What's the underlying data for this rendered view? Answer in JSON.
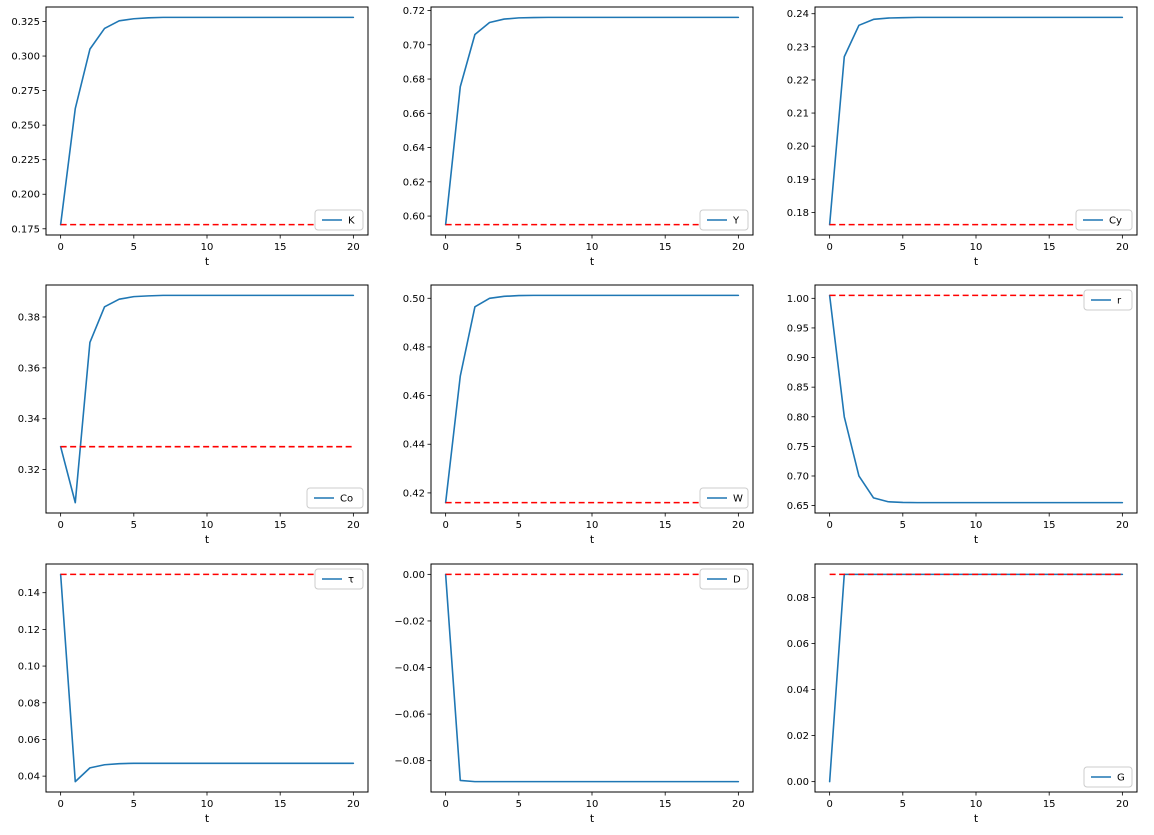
{
  "colors": {
    "series": "#1f77b4",
    "dashed": "#ff0000",
    "axes": "#000000",
    "legend_border": "#cccccc",
    "background": "#ffffff"
  },
  "chart_data": [
    {
      "type": "line",
      "label": "K",
      "legend_pos": "lower-right",
      "xlabel": "t",
      "xlim": [
        -1,
        21
      ],
      "ylim": [
        0.1705,
        0.3355
      ],
      "x_ticks": [
        0,
        5,
        10,
        15,
        20
      ],
      "x_tick_labels": [
        "0",
        "5",
        "10",
        "15",
        "20"
      ],
      "y_ticks": [
        0.175,
        0.2,
        0.225,
        0.25,
        0.275,
        0.3,
        0.325
      ],
      "y_tick_labels": [
        "0.175",
        "0.200",
        "0.225",
        "0.250",
        "0.275",
        "0.300",
        "0.325"
      ],
      "x": [
        0,
        1,
        2,
        3,
        4,
        5,
        6,
        7,
        8,
        9,
        10,
        11,
        12,
        13,
        14,
        15,
        16,
        17,
        18,
        19,
        20
      ],
      "values": [
        0.178,
        0.262,
        0.305,
        0.32,
        0.3255,
        0.327,
        0.3277,
        0.328,
        0.328,
        0.328,
        0.328,
        0.328,
        0.328,
        0.328,
        0.328,
        0.328,
        0.328,
        0.328,
        0.328,
        0.328,
        0.328
      ],
      "dashed_value": 0.178
    },
    {
      "type": "line",
      "label": "Y",
      "legend_pos": "lower-right",
      "xlabel": "t",
      "xlim": [
        -1,
        21
      ],
      "ylim": [
        0.58895,
        0.72205
      ],
      "x_ticks": [
        0,
        5,
        10,
        15,
        20
      ],
      "x_tick_labels": [
        "0",
        "5",
        "10",
        "15",
        "20"
      ],
      "y_ticks": [
        0.6,
        0.62,
        0.64,
        0.66,
        0.68,
        0.7,
        0.72
      ],
      "y_tick_labels": [
        "0.60",
        "0.62",
        "0.64",
        "0.66",
        "0.68",
        "0.70",
        "0.72"
      ],
      "x": [
        0,
        1,
        2,
        3,
        4,
        5,
        6,
        7,
        8,
        9,
        10,
        11,
        12,
        13,
        14,
        15,
        16,
        17,
        18,
        19,
        20
      ],
      "values": [
        0.595,
        0.6755,
        0.706,
        0.713,
        0.715,
        0.7157,
        0.7159,
        0.716,
        0.716,
        0.716,
        0.716,
        0.716,
        0.716,
        0.716,
        0.716,
        0.716,
        0.716,
        0.716,
        0.716,
        0.716,
        0.716
      ],
      "dashed_value": 0.595
    },
    {
      "type": "line",
      "label": "Cy",
      "legend_pos": "lower-right",
      "xlabel": "t",
      "xlim": [
        -1,
        21
      ],
      "ylim": [
        0.17317,
        0.24203
      ],
      "x_ticks": [
        0,
        5,
        10,
        15,
        20
      ],
      "x_tick_labels": [
        "0",
        "5",
        "10",
        "15",
        "20"
      ],
      "y_ticks": [
        0.18,
        0.19,
        0.2,
        0.21,
        0.22,
        0.23,
        0.24
      ],
      "y_tick_labels": [
        "0.18",
        "0.19",
        "0.20",
        "0.21",
        "0.22",
        "0.23",
        "0.24"
      ],
      "x": [
        0,
        1,
        2,
        3,
        4,
        5,
        6,
        7,
        8,
        9,
        10,
        11,
        12,
        13,
        14,
        15,
        16,
        17,
        18,
        19,
        20
      ],
      "values": [
        0.1763,
        0.227,
        0.2365,
        0.2383,
        0.2387,
        0.2388,
        0.2389,
        0.2389,
        0.2389,
        0.2389,
        0.2389,
        0.2389,
        0.2389,
        0.2389,
        0.2389,
        0.2389,
        0.2389,
        0.2389,
        0.2389,
        0.2389,
        0.2389
      ],
      "dashed_value": 0.1763
    },
    {
      "type": "line",
      "label": "Co",
      "legend_pos": "lower-right",
      "xlabel": "t",
      "xlim": [
        -1,
        21
      ],
      "ylim": [
        0.302925,
        0.392575
      ],
      "x_ticks": [
        0,
        5,
        10,
        15,
        20
      ],
      "x_tick_labels": [
        "0",
        "5",
        "10",
        "15",
        "20"
      ],
      "y_ticks": [
        0.32,
        0.34,
        0.36,
        0.38
      ],
      "y_tick_labels": [
        "0.32",
        "0.34",
        "0.36",
        "0.38"
      ],
      "x": [
        0,
        1,
        2,
        3,
        4,
        5,
        6,
        7,
        8,
        9,
        10,
        11,
        12,
        13,
        14,
        15,
        16,
        17,
        18,
        19,
        20
      ],
      "values": [
        0.329,
        0.307,
        0.37,
        0.384,
        0.387,
        0.388,
        0.3883,
        0.3885,
        0.3885,
        0.3885,
        0.3885,
        0.3885,
        0.3885,
        0.3885,
        0.3885,
        0.3885,
        0.3885,
        0.3885,
        0.3885,
        0.3885,
        0.3885
      ],
      "dashed_value": 0.329
    },
    {
      "type": "line",
      "label": "W",
      "legend_pos": "lower-right",
      "xlabel": "t",
      "xlim": [
        -1,
        21
      ],
      "ylim": [
        0.41174,
        0.50546
      ],
      "x_ticks": [
        0,
        5,
        10,
        15,
        20
      ],
      "x_tick_labels": [
        "0",
        "5",
        "10",
        "15",
        "20"
      ],
      "y_ticks": [
        0.42,
        0.44,
        0.46,
        0.48,
        0.5
      ],
      "y_tick_labels": [
        "0.42",
        "0.44",
        "0.46",
        "0.48",
        "0.50"
      ],
      "x": [
        0,
        1,
        2,
        3,
        4,
        5,
        6,
        7,
        8,
        9,
        10,
        11,
        12,
        13,
        14,
        15,
        16,
        17,
        18,
        19,
        20
      ],
      "values": [
        0.416,
        0.468,
        0.4965,
        0.5,
        0.5008,
        0.5011,
        0.5012,
        0.5012,
        0.5012,
        0.5012,
        0.5012,
        0.5012,
        0.5012,
        0.5012,
        0.5012,
        0.5012,
        0.5012,
        0.5012,
        0.5012,
        0.5012,
        0.5012
      ],
      "dashed_value": 0.416
    },
    {
      "type": "line",
      "label": "r",
      "legend_pos": "upper-right",
      "xlabel": "t",
      "xlim": [
        -1,
        21
      ],
      "ylim": [
        0.6375,
        1.0225
      ],
      "x_ticks": [
        0,
        5,
        10,
        15,
        20
      ],
      "x_tick_labels": [
        "0",
        "5",
        "10",
        "15",
        "20"
      ],
      "y_ticks": [
        0.65,
        0.7,
        0.75,
        0.8,
        0.85,
        0.9,
        0.95,
        1.0
      ],
      "y_tick_labels": [
        "0.65",
        "0.70",
        "0.75",
        "0.80",
        "0.85",
        "0.90",
        "0.95",
        "1.00"
      ],
      "x": [
        0,
        1,
        2,
        3,
        4,
        5,
        6,
        7,
        8,
        9,
        10,
        11,
        12,
        13,
        14,
        15,
        16,
        17,
        18,
        19,
        20
      ],
      "values": [
        1.005,
        0.8,
        0.7,
        0.663,
        0.6565,
        0.6553,
        0.655,
        0.655,
        0.655,
        0.655,
        0.655,
        0.655,
        0.655,
        0.655,
        0.655,
        0.655,
        0.655,
        0.655,
        0.655,
        0.655,
        0.655
      ],
      "dashed_value": 1.005
    },
    {
      "type": "line",
      "label": "τ",
      "legend_pos": "upper-right",
      "xlabel": "t",
      "xlim": [
        -1,
        21
      ],
      "ylim": [
        0.03135,
        0.15565
      ],
      "x_ticks": [
        0,
        5,
        10,
        15,
        20
      ],
      "x_tick_labels": [
        "0",
        "5",
        "10",
        "15",
        "20"
      ],
      "y_ticks": [
        0.04,
        0.06,
        0.08,
        0.1,
        0.12,
        0.14
      ],
      "y_tick_labels": [
        "0.04",
        "0.06",
        "0.08",
        "0.10",
        "0.12",
        "0.14"
      ],
      "x": [
        0,
        1,
        2,
        3,
        4,
        5,
        6,
        7,
        8,
        9,
        10,
        11,
        12,
        13,
        14,
        15,
        16,
        17,
        18,
        19,
        20
      ],
      "values": [
        0.15,
        0.037,
        0.0445,
        0.0462,
        0.0468,
        0.047,
        0.047,
        0.047,
        0.047,
        0.047,
        0.047,
        0.047,
        0.047,
        0.047,
        0.047,
        0.047,
        0.047,
        0.047,
        0.047,
        0.047,
        0.047
      ],
      "dashed_value": 0.15
    },
    {
      "type": "line",
      "label": "D",
      "legend_pos": "upper-right",
      "xlabel": "t",
      "xlim": [
        -1,
        21
      ],
      "ylim": [
        -0.09345,
        0.00445
      ],
      "x_ticks": [
        0,
        5,
        10,
        15,
        20
      ],
      "x_tick_labels": [
        "0",
        "5",
        "10",
        "15",
        "20"
      ],
      "y_ticks": [
        0.0,
        -0.02,
        -0.04,
        -0.06,
        -0.08
      ],
      "y_tick_labels": [
        "0.00",
        "−0.02",
        "−0.04",
        "−0.06",
        "−0.08"
      ],
      "x": [
        0,
        1,
        2,
        3,
        4,
        5,
        6,
        7,
        8,
        9,
        10,
        11,
        12,
        13,
        14,
        15,
        16,
        17,
        18,
        19,
        20
      ],
      "values": [
        0.0,
        -0.0885,
        -0.089,
        -0.089,
        -0.089,
        -0.089,
        -0.089,
        -0.089,
        -0.089,
        -0.089,
        -0.089,
        -0.089,
        -0.089,
        -0.089,
        -0.089,
        -0.089,
        -0.089,
        -0.089,
        -0.089,
        -0.089,
        -0.089
      ],
      "dashed_value": 0.0
    },
    {
      "type": "line",
      "label": "G",
      "legend_pos": "lower-right",
      "xlabel": "t",
      "xlim": [
        -1,
        21
      ],
      "ylim": [
        -0.0045,
        0.0945
      ],
      "x_ticks": [
        0,
        5,
        10,
        15,
        20
      ],
      "x_tick_labels": [
        "0",
        "5",
        "10",
        "15",
        "20"
      ],
      "y_ticks": [
        0.0,
        0.02,
        0.04,
        0.06,
        0.08
      ],
      "y_tick_labels": [
        "0.00",
        "0.02",
        "0.04",
        "0.06",
        "0.08"
      ],
      "x": [
        0,
        1,
        2,
        3,
        4,
        5,
        6,
        7,
        8,
        9,
        10,
        11,
        12,
        13,
        14,
        15,
        16,
        17,
        18,
        19,
        20
      ],
      "values": [
        0.0,
        0.09,
        0.09,
        0.09,
        0.09,
        0.09,
        0.09,
        0.09,
        0.09,
        0.09,
        0.09,
        0.09,
        0.09,
        0.09,
        0.09,
        0.09,
        0.09,
        0.09,
        0.09,
        0.09,
        0.09
      ],
      "dashed_value": 0.09
    }
  ]
}
